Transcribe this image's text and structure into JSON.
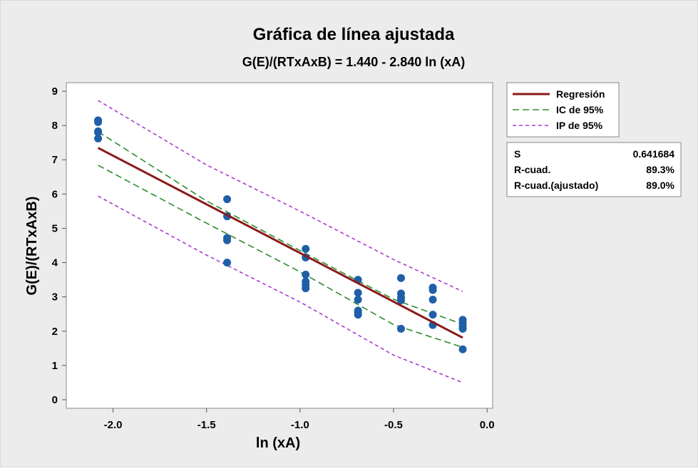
{
  "chart_data": {
    "type": "scatter",
    "title": "Gráfica de línea ajustada",
    "subtitle": "G(E)/(RTxAxB) = 1.440 - 2.840 ln (xA)",
    "xlabel": "ln (xA)",
    "ylabel": "G(E)/(RTxAxB)",
    "xlim": [
      -2.25,
      0.03
    ],
    "ylim": [
      -0.25,
      9.25
    ],
    "xticks": [
      -2.0,
      -1.5,
      -1.0,
      -0.5,
      0.0
    ],
    "xtick_labels": [
      "-2.0",
      "-1.5",
      "-1.0",
      "-0.5",
      "0.0"
    ],
    "yticks": [
      0,
      1,
      2,
      3,
      4,
      5,
      6,
      7,
      8,
      9
    ],
    "ytick_labels": [
      "0",
      "1",
      "2",
      "3",
      "4",
      "5",
      "6",
      "7",
      "8",
      "9"
    ],
    "grid": false,
    "legend_position": "top-right",
    "colors": {
      "background": "#ececec",
      "plot_background": "#ffffff",
      "points": "#1f5fa8",
      "regression": "#8b1a1a",
      "ci": "#2e8b2e",
      "pi": "#a63ccf"
    },
    "points": {
      "name": "",
      "x": [
        -2.08,
        -2.08,
        -2.08,
        -2.08,
        -2.08,
        -1.39,
        -1.39,
        -1.39,
        -1.39,
        -1.39,
        -0.97,
        -0.97,
        -0.97,
        -0.97,
        -0.97,
        -0.97,
        -0.69,
        -0.69,
        -0.69,
        -0.69,
        -0.69,
        -0.69,
        -0.46,
        -0.46,
        -0.46,
        -0.46,
        -0.46,
        -0.29,
        -0.29,
        -0.29,
        -0.29,
        -0.29,
        -0.13,
        -0.13,
        -0.13,
        -0.13,
        -0.13
      ],
      "y": [
        8.15,
        8.1,
        7.83,
        7.8,
        7.62,
        5.85,
        5.35,
        4.72,
        4.65,
        4.0,
        4.4,
        4.15,
        3.65,
        3.45,
        3.35,
        3.25,
        3.5,
        3.12,
        2.92,
        2.6,
        2.55,
        2.48,
        3.55,
        3.1,
        2.98,
        2.9,
        2.07,
        3.27,
        3.2,
        2.92,
        2.48,
        2.18,
        2.33,
        2.25,
        2.15,
        2.07,
        1.47
      ]
    },
    "fit": {
      "intercept": 1.44,
      "slope": -2.84,
      "x_range": [
        -2.08,
        -0.13
      ],
      "ci_band": {
        "x": [
          -2.08,
          -1.5,
          -1.0,
          -0.5,
          -0.13
        ],
        "upper": [
          7.82,
          5.8,
          4.35,
          2.93,
          2.2
        ],
        "lower": [
          6.84,
          5.15,
          3.73,
          2.19,
          1.53
        ]
      },
      "pi_band": {
        "x": [
          -2.08,
          -1.5,
          -1.0,
          -0.5,
          -0.13
        ],
        "upper": [
          8.73,
          6.85,
          5.5,
          4.09,
          3.16
        ],
        "lower": [
          5.94,
          4.22,
          2.85,
          1.3,
          0.5
        ]
      }
    },
    "legend": [
      {
        "label": "Regresión",
        "style": "solid",
        "color_key": "regression"
      },
      {
        "label": "IC de 95%",
        "style": "dashed",
        "color_key": "ci"
      },
      {
        "label": "IP de 95%",
        "style": "dashed",
        "color_key": "pi"
      }
    ],
    "stats": [
      {
        "label": "S",
        "value": "0.641684"
      },
      {
        "label": "R-cuad.",
        "value": "89.3%"
      },
      {
        "label": "R-cuad.(ajustado)",
        "value": "89.0%"
      }
    ]
  }
}
